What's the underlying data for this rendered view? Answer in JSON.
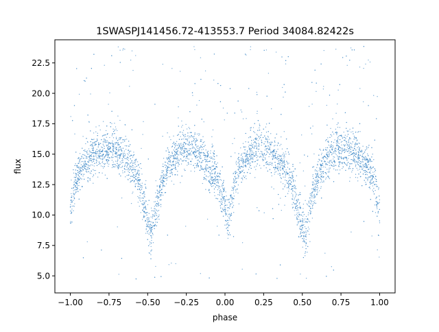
{
  "chart_data": {
    "type": "scatter",
    "title": "1SWASPJ141456.72-413553.7 Period 34084.82422s",
    "xlabel": "phase",
    "ylabel": "flux",
    "xlim": [
      -1.1,
      1.1
    ],
    "ylim": [
      3.6,
      24.4
    ],
    "xticks": [
      -1.0,
      -0.75,
      -0.5,
      -0.25,
      0.0,
      0.25,
      0.5,
      0.75,
      1.0
    ],
    "xtick_labels": [
      "−1.00",
      "−0.75",
      "−0.50",
      "−0.25",
      "0.00",
      "0.25",
      "0.50",
      "0.75",
      "1.00"
    ],
    "yticks": [
      5.0,
      7.5,
      10.0,
      12.5,
      15.0,
      17.5,
      20.0,
      22.5
    ],
    "ytick_labels": [
      "5.0",
      "7.5",
      "10.0",
      "12.5",
      "15.0",
      "17.5",
      "20.0",
      "22.5"
    ],
    "grid": false,
    "legend": "none",
    "marker_color": "#3a86c6",
    "series": [
      {
        "x": [
          -1.0,
          -0.97,
          -0.94,
          -0.9,
          -0.85,
          -0.8,
          -0.75,
          -0.7,
          -0.65,
          -0.6,
          -0.56,
          -0.52,
          -0.48,
          -0.44,
          -0.4,
          -0.35,
          -0.3,
          -0.25,
          -0.2,
          -0.15,
          -0.1,
          -0.06,
          -0.02,
          0.02,
          0.06,
          0.1,
          0.15,
          0.2,
          0.25,
          0.3,
          0.35,
          0.4,
          0.44,
          0.48,
          0.52,
          0.56,
          0.6,
          0.65,
          0.7,
          0.75,
          0.8,
          0.85,
          0.9,
          0.94,
          0.97,
          1.0
        ],
        "y": [
          10.0,
          12.5,
          13.6,
          14.4,
          15.0,
          15.4,
          15.5,
          15.3,
          14.8,
          14.0,
          13.0,
          10.5,
          8.2,
          11.0,
          13.0,
          14.4,
          15.2,
          15.6,
          15.5,
          14.9,
          14.0,
          13.3,
          11.8,
          9.5,
          12.5,
          13.9,
          14.9,
          15.4,
          15.6,
          15.2,
          14.5,
          13.6,
          12.2,
          9.8,
          8.0,
          11.5,
          13.2,
          14.4,
          15.2,
          15.5,
          15.4,
          15.0,
          14.3,
          13.6,
          12.3,
          10.2
        ]
      }
    ]
  }
}
